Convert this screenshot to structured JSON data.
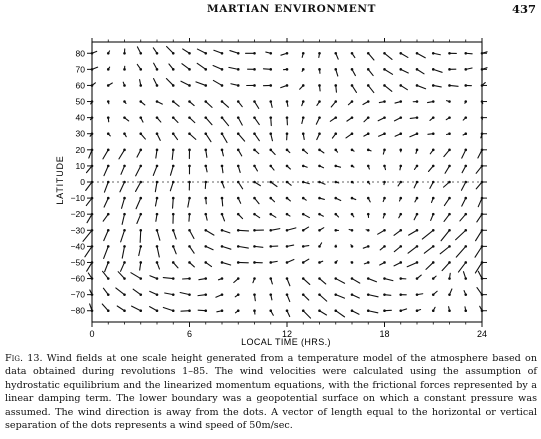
{
  "header": {
    "running_title": "MARTIAN ENVIRONMENT",
    "page_number": "437"
  },
  "chart_data": {
    "type": "scatter",
    "subtype": "vector-field",
    "xlabel": "LOCAL TIME (HRS.)",
    "ylabel": "LATITUDE",
    "xlim": [
      0,
      24
    ],
    "ylim": [
      -87,
      87
    ],
    "xticks": [
      0,
      6,
      12,
      18,
      24
    ],
    "yticks": [
      -80,
      -70,
      -60,
      -50,
      -40,
      -30,
      -20,
      -10,
      0,
      10,
      20,
      30,
      40,
      50,
      60,
      70,
      80
    ],
    "grid": false,
    "dot_spacing_hours": 1,
    "dot_spacing_degrees": 10,
    "vector_scale_m_per_s_per_spacing": 50,
    "note": "Wind direction is away from the dots; vectors estimated from the figure"
  },
  "caption": {
    "label": "Fig. 13.",
    "text": " Wind fields at one scale height generated from a temperature model of the atmosphere based on data obtained during revolutions 1–85. The wind velocities were calculated using the assumption of hydrostatic equilibrium and the linearized momentum equations, with the frictional forces represented by a linear damping term. The lower boundary was a geopotential surface on which a constant pressure was assumed. The wind direction is away from the dots. A vector of length equal to the horizontal or vertical separation of the dots represents a wind speed of 50m/sec."
  }
}
